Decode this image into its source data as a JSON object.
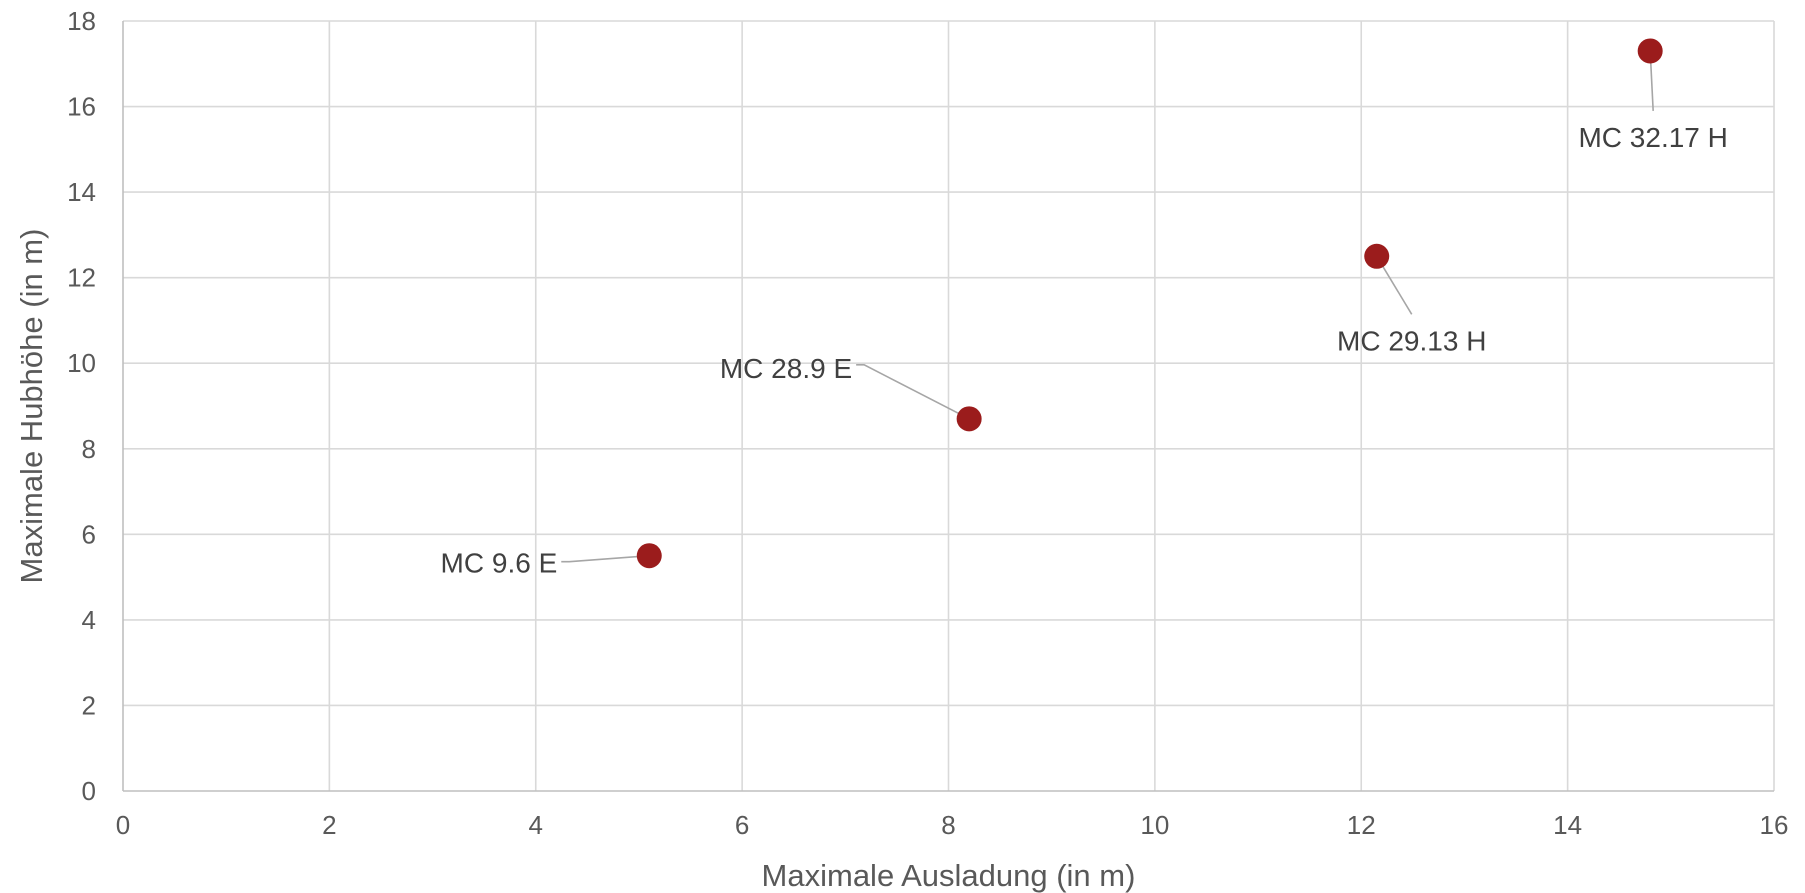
{
  "chart_data": {
    "type": "scatter",
    "title": "",
    "xlabel": "Maximale Ausladung (in m)",
    "ylabel": "Maximale Hubhöhe (in m)",
    "xlim": [
      0,
      16
    ],
    "ylim": [
      0,
      18
    ],
    "x_ticks": [
      0,
      2,
      4,
      6,
      8,
      10,
      12,
      14,
      16
    ],
    "y_ticks": [
      0,
      2,
      4,
      6,
      8,
      10,
      12,
      14,
      16,
      18
    ],
    "grid": true,
    "legend": "none",
    "marker_color": "#9b1c1c",
    "points": [
      {
        "label": "MC 9.6 E",
        "x": 5.1,
        "y": 5.5
      },
      {
        "label": "MC 28.9 E",
        "x": 8.2,
        "y": 8.7
      },
      {
        "label": "MC 29.13 H",
        "x": 12.15,
        "y": 12.5
      },
      {
        "label": "MC 32.17 H",
        "x": 14.8,
        "y": 17.3
      }
    ]
  }
}
